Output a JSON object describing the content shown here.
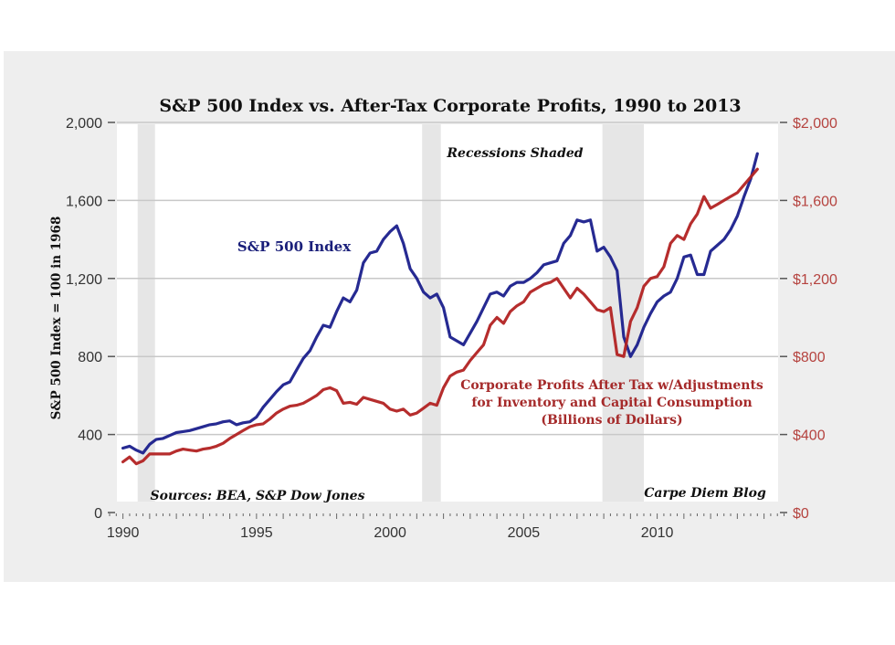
{
  "chart_data": {
    "type": "line",
    "title": "S&P 500 Index vs. After-Tax Corporate Profits, 1990 to 2013",
    "xlabel": "",
    "ylabel": "S&P 500 Index = 100 in 1968",
    "ylabel_right": "",
    "xlim": [
      1989.5,
      2014.8
    ],
    "ylim": [
      0,
      2000
    ],
    "ylim_right": [
      0,
      2000
    ],
    "grid": true,
    "x_ticks": [
      1990,
      1995,
      2000,
      2005,
      2010
    ],
    "x_tick_labels": [
      "1990",
      "1995",
      "2000",
      "2005",
      "2010"
    ],
    "y_ticks_left": [
      0,
      400,
      800,
      1200,
      1600,
      2000
    ],
    "y_tick_labels_left": [
      "0",
      "400",
      "800",
      "1,200",
      "1,600",
      "2,000"
    ],
    "y_ticks_right": [
      0,
      400,
      800,
      1200,
      1600,
      2000
    ],
    "y_tick_labels_right": [
      "$0",
      "$400",
      "$800",
      "$1,200",
      "$1,600",
      "$2,000"
    ],
    "recessions": [
      [
        1990.55,
        1991.2
      ],
      [
        2001.2,
        2001.9
      ],
      [
        2007.95,
        2009.5
      ]
    ],
    "series": [
      {
        "name": "S&P 500 Index",
        "axis": "left",
        "color": "#1a1f8c",
        "x": [
          1990.0,
          1990.25,
          1990.5,
          1990.75,
          1991.0,
          1991.25,
          1991.5,
          1991.75,
          1992.0,
          1992.25,
          1992.5,
          1992.75,
          1993.0,
          1993.25,
          1993.5,
          1993.75,
          1994.0,
          1994.25,
          1994.5,
          1994.75,
          1995.0,
          1995.25,
          1995.5,
          1995.75,
          1996.0,
          1996.25,
          1996.5,
          1996.75,
          1997.0,
          1997.25,
          1997.5,
          1997.75,
          1998.0,
          1998.25,
          1998.5,
          1998.75,
          1999.0,
          1999.25,
          1999.5,
          1999.75,
          2000.0,
          2000.25,
          2000.5,
          2000.75,
          2001.0,
          2001.25,
          2001.5,
          2001.75,
          2002.0,
          2002.25,
          2002.5,
          2002.75,
          2003.0,
          2003.25,
          2003.5,
          2003.75,
          2004.0,
          2004.25,
          2004.5,
          2004.75,
          2005.0,
          2005.25,
          2005.5,
          2005.75,
          2006.0,
          2006.25,
          2006.5,
          2006.75,
          2007.0,
          2007.25,
          2007.5,
          2007.75,
          2008.0,
          2008.25,
          2008.5,
          2008.75,
          2009.0,
          2009.25,
          2009.5,
          2009.75,
          2010.0,
          2010.25,
          2010.5,
          2010.75,
          2011.0,
          2011.25,
          2011.5,
          2011.75,
          2012.0,
          2012.25,
          2012.5,
          2012.75,
          2013.0,
          2013.25,
          2013.5,
          2013.75
        ],
        "values": [
          330,
          340,
          320,
          305,
          350,
          375,
          380,
          395,
          410,
          415,
          420,
          430,
          440,
          450,
          455,
          465,
          470,
          450,
          460,
          465,
          490,
          540,
          580,
          620,
          655,
          670,
          730,
          790,
          830,
          900,
          960,
          950,
          1030,
          1100,
          1080,
          1140,
          1280,
          1330,
          1340,
          1400,
          1440,
          1470,
          1380,
          1250,
          1200,
          1130,
          1100,
          1120,
          1050,
          900,
          880,
          860,
          920,
          980,
          1050,
          1120,
          1130,
          1110,
          1160,
          1180,
          1180,
          1200,
          1230,
          1270,
          1280,
          1290,
          1380,
          1420,
          1500,
          1490,
          1500,
          1340,
          1360,
          1310,
          1240,
          900,
          800,
          860,
          950,
          1020,
          1080,
          1110,
          1130,
          1200,
          1310,
          1320,
          1220,
          1220,
          1340,
          1370,
          1400,
          1450,
          1520,
          1620,
          1710,
          1840
        ]
      },
      {
        "name": "Corporate Profits After Tax w/Adjustments for Inventory and Capital Consumption (Billions of Dollars)",
        "axis": "right",
        "color": "#b22222",
        "x": [
          1990.0,
          1990.25,
          1990.5,
          1990.75,
          1991.0,
          1991.25,
          1991.5,
          1991.75,
          1992.0,
          1992.25,
          1992.5,
          1992.75,
          1993.0,
          1993.25,
          1993.5,
          1993.75,
          1994.0,
          1994.25,
          1994.5,
          1994.75,
          1995.0,
          1995.25,
          1995.5,
          1995.75,
          1996.0,
          1996.25,
          1996.5,
          1996.75,
          1997.0,
          1997.25,
          1997.5,
          1997.75,
          1998.0,
          1998.25,
          1998.5,
          1998.75,
          1999.0,
          1999.25,
          1999.5,
          1999.75,
          2000.0,
          2000.25,
          2000.5,
          2000.75,
          2001.0,
          2001.25,
          2001.5,
          2001.75,
          2002.0,
          2002.25,
          2002.5,
          2002.75,
          2003.0,
          2003.25,
          2003.5,
          2003.75,
          2004.0,
          2004.25,
          2004.5,
          2004.75,
          2005.0,
          2005.25,
          2005.5,
          2005.75,
          2006.0,
          2006.25,
          2006.5,
          2006.75,
          2007.0,
          2007.25,
          2007.5,
          2007.75,
          2008.0,
          2008.25,
          2008.5,
          2008.75,
          2009.0,
          2009.25,
          2009.5,
          2009.75,
          2010.0,
          2010.25,
          2010.5,
          2010.75,
          2011.0,
          2011.25,
          2011.5,
          2011.75,
          2012.0,
          2012.25,
          2012.5,
          2012.75,
          2013.0,
          2013.25,
          2013.5,
          2013.75
        ],
        "values": [
          260,
          285,
          250,
          265,
          300,
          300,
          300,
          300,
          315,
          325,
          320,
          315,
          325,
          330,
          340,
          355,
          380,
          400,
          420,
          440,
          450,
          455,
          480,
          510,
          530,
          545,
          550,
          560,
          580,
          600,
          630,
          640,
          625,
          560,
          565,
          555,
          590,
          580,
          570,
          560,
          530,
          520,
          530,
          500,
          510,
          535,
          560,
          550,
          640,
          700,
          720,
          730,
          780,
          820,
          860,
          960,
          1000,
          970,
          1030,
          1060,
          1080,
          1130,
          1150,
          1170,
          1180,
          1200,
          1150,
          1100,
          1150,
          1120,
          1080,
          1040,
          1030,
          1050,
          810,
          800,
          980,
          1050,
          1160,
          1200,
          1210,
          1260,
          1380,
          1420,
          1400,
          1480,
          1530,
          1620,
          1560,
          1580,
          1600,
          1620,
          1640,
          1680,
          1720,
          1760
        ]
      }
    ],
    "annotations": [
      {
        "text": "Recessions Shaded",
        "near": "top-center"
      },
      {
        "text": "S&P 500 Index",
        "near": "series-1 label"
      },
      {
        "lines": [
          "Corporate Profits After Tax w/Adjustments",
          "for Inventory and Capital Consumption",
          "(Billions of Dollars)"
        ],
        "near": "series-2 label"
      },
      {
        "text": "Sources: BEA, S&P Dow Jones",
        "near": "bottom-left"
      },
      {
        "text": "Carpe Diem Blog",
        "near": "bottom-right"
      }
    ]
  },
  "labels": {
    "title": "S&P 500 Index vs. After-Tax Corporate Profits, 1990 to 2013",
    "ylabel": "S&P 500 Index = 100 in 1968",
    "recessions": "Recessions Shaded",
    "sp_label": "S&P 500 Index",
    "profits_line1": "Corporate Profits After Tax w/Adjustments",
    "profits_line2": "for Inventory and Capital Consumption",
    "profits_line3": "(Billions of Dollars)",
    "sources": "Sources: BEA, S&P Dow Jones",
    "credit": "Carpe Diem Blog"
  }
}
